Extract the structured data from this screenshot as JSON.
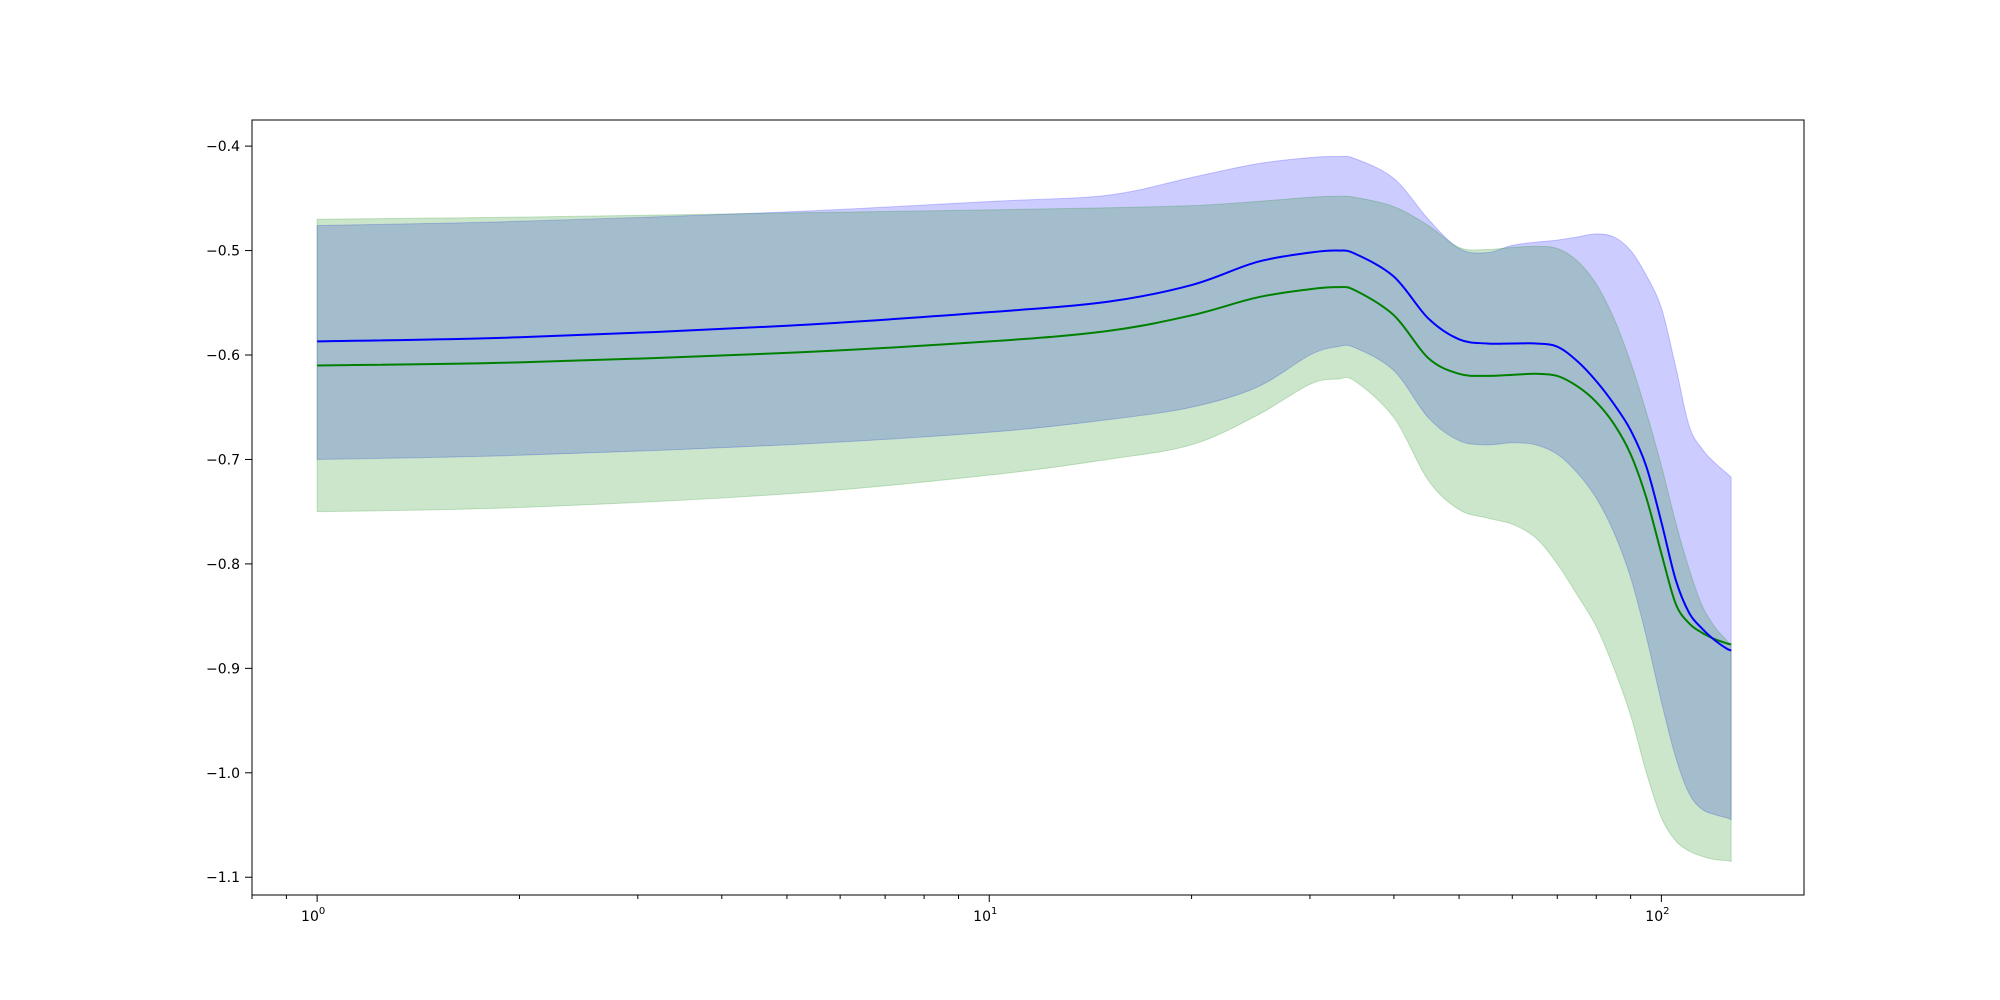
{
  "chart_data": {
    "type": "line",
    "title": "",
    "xlabel": "",
    "ylabel": "",
    "xscale": "log",
    "xlim": [
      0.8,
      163
    ],
    "ylim": [
      -1.117,
      -0.375
    ],
    "grid": false,
    "legend": "none",
    "x_ticks": [
      {
        "value": 1,
        "base": "10",
        "exp": "0"
      },
      {
        "value": 10,
        "base": "10",
        "exp": "1"
      },
      {
        "value": 100,
        "base": "10",
        "exp": "2"
      }
    ],
    "y_ticks": [
      {
        "value": -0.4,
        "label": "−0.4"
      },
      {
        "value": -0.5,
        "label": "−0.5"
      },
      {
        "value": -0.6,
        "label": "−0.6"
      },
      {
        "value": -0.7,
        "label": "−0.7"
      },
      {
        "value": -0.8,
        "label": "−0.8"
      },
      {
        "value": -0.9,
        "label": "−0.9"
      },
      {
        "value": -1.0,
        "label": "−1.0"
      },
      {
        "value": -1.1,
        "label": "−1.1"
      }
    ],
    "x": [
      1,
      2,
      5,
      10,
      15,
      20,
      25,
      30,
      33,
      35,
      40,
      45,
      50,
      55,
      60,
      65,
      70,
      75,
      80,
      85,
      90,
      95,
      100,
      105,
      110,
      115,
      120,
      125,
      127
    ],
    "series": [
      {
        "color": "#0000ff",
        "band_color": "#0000ff",
        "values": [
          -0.587,
          -0.583,
          -0.572,
          -0.559,
          -0.549,
          -0.533,
          -0.511,
          -0.502,
          -0.5,
          -0.503,
          -0.525,
          -0.565,
          -0.585,
          -0.589,
          -0.589,
          -0.589,
          -0.592,
          -0.606,
          -0.625,
          -0.647,
          -0.672,
          -0.707,
          -0.76,
          -0.815,
          -0.847,
          -0.862,
          -0.873,
          -0.881,
          -0.883
        ],
        "upper": [
          -0.476,
          -0.472,
          -0.463,
          -0.453,
          -0.447,
          -0.43,
          -0.417,
          -0.411,
          -0.41,
          -0.412,
          -0.431,
          -0.47,
          -0.498,
          -0.502,
          -0.495,
          -0.492,
          -0.49,
          -0.487,
          -0.484,
          -0.487,
          -0.5,
          -0.524,
          -0.555,
          -0.611,
          -0.668,
          -0.69,
          -0.703,
          -0.713,
          -0.717
        ]
      },
      {
        "color": "#008000",
        "band_color": "#008000",
        "values": [
          -0.61,
          -0.607,
          -0.598,
          -0.587,
          -0.577,
          -0.562,
          -0.545,
          -0.537,
          -0.535,
          -0.538,
          -0.562,
          -0.603,
          -0.618,
          -0.62,
          -0.619,
          -0.618,
          -0.62,
          -0.63,
          -0.645,
          -0.666,
          -0.695,
          -0.737,
          -0.79,
          -0.838,
          -0.857,
          -0.866,
          -0.872,
          -0.876,
          -0.877
        ],
        "upper": [
          -0.47,
          -0.468,
          -0.464,
          -0.461,
          -0.459,
          -0.457,
          -0.453,
          -0.449,
          -0.448,
          -0.449,
          -0.458,
          -0.476,
          -0.497,
          -0.499,
          -0.497,
          -0.496,
          -0.498,
          -0.51,
          -0.532,
          -0.565,
          -0.607,
          -0.655,
          -0.706,
          -0.76,
          -0.805,
          -0.84,
          -0.86,
          -0.873,
          -0.878
        ],
        "lower": [
          -0.75,
          -0.746,
          -0.733,
          -0.715,
          -0.7,
          -0.686,
          -0.658,
          -0.628,
          -0.623,
          -0.625,
          -0.66,
          -0.72,
          -0.748,
          -0.756,
          -0.762,
          -0.775,
          -0.8,
          -0.83,
          -0.86,
          -0.9,
          -0.945,
          -1.0,
          -1.043,
          -1.065,
          -1.075,
          -1.08,
          -1.083,
          -1.084,
          -1.085
        ]
      }
    ],
    "blue_lower": [
      -0.7,
      -0.696,
      -0.686,
      -0.674,
      -0.662,
      -0.65,
      -0.631,
      -0.6,
      -0.592,
      -0.593,
      -0.615,
      -0.66,
      -0.682,
      -0.686,
      -0.684,
      -0.686,
      -0.695,
      -0.713,
      -0.737,
      -0.77,
      -0.813,
      -0.87,
      -0.932,
      -0.985,
      -1.02,
      -1.035,
      -1.04,
      -1.043,
      -1.045
    ]
  }
}
